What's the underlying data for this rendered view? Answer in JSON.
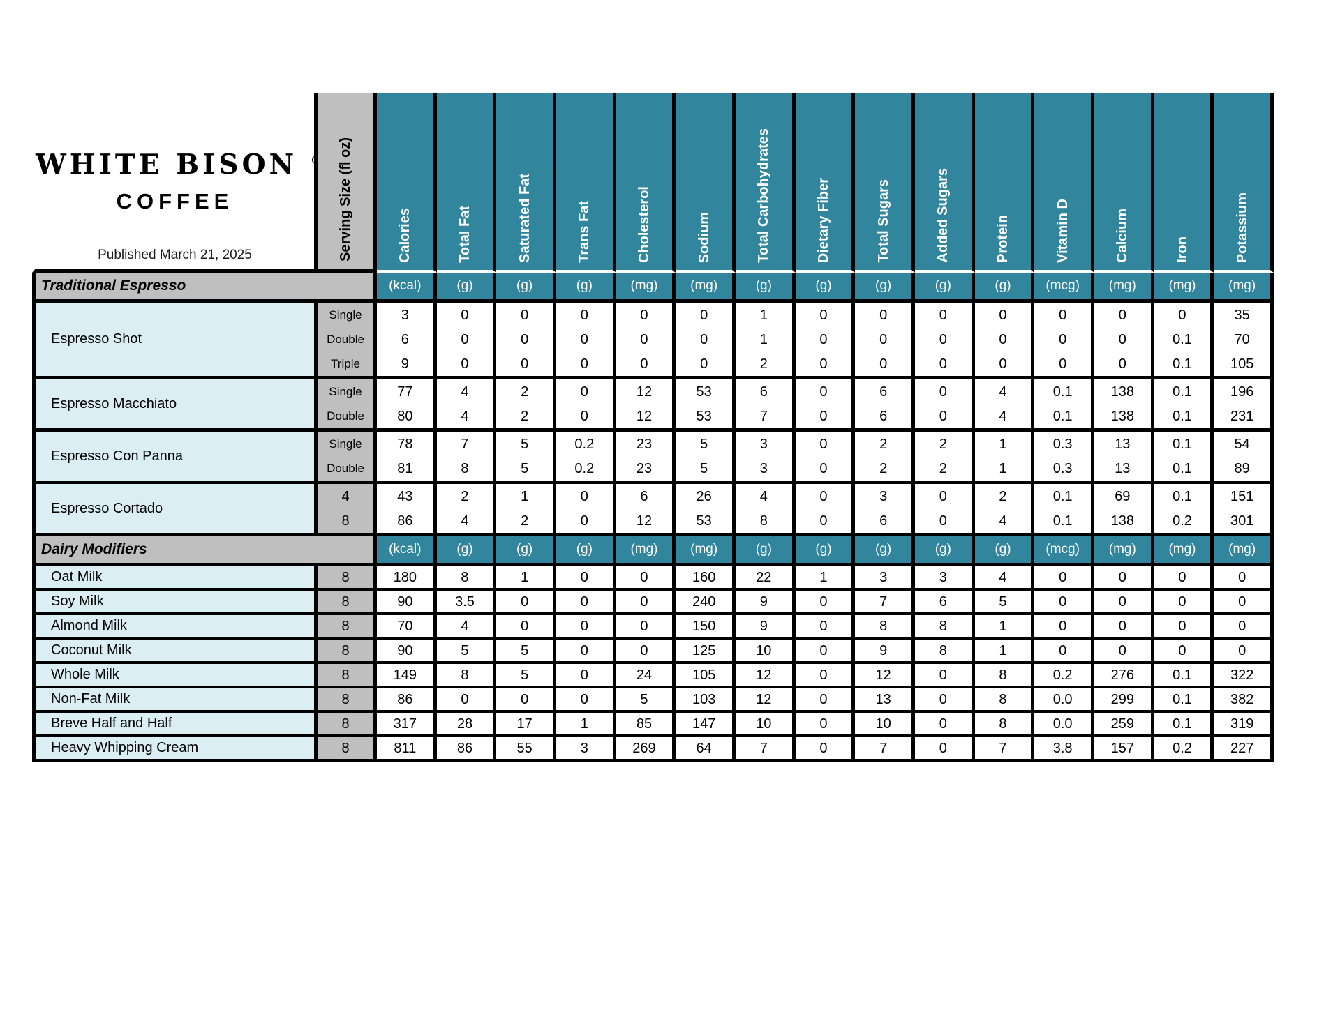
{
  "brand": {
    "name_line1": "WHITE BISON",
    "registered_mark": "®",
    "name_line2": "COFFEE",
    "published": "Published March 21, 2025"
  },
  "colors": {
    "teal": "#31859C",
    "header_gray": "#BFBFBF",
    "item_blue": "#DAEEF3",
    "border": "#000000"
  },
  "table": {
    "serving_size_header": "Serving Size (fl oz)",
    "nutrient_columns": [
      "Calories",
      "Total Fat",
      "Saturated Fat",
      "Trans Fat",
      "Cholesterol",
      "Sodium",
      "Total Carbohydrates",
      "Dietary Fiber",
      "Total Sugars",
      "Added Sugars",
      "Protein",
      "Vitamin D",
      "Calcium",
      "Iron",
      "Potassium"
    ],
    "unit_row": [
      "(kcal)",
      "(g)",
      "(g)",
      "(g)",
      "(mg)",
      "(mg)",
      "(g)",
      "(g)",
      "(g)",
      "(g)",
      "(g)",
      "(mcg)",
      "(mg)",
      "(mg)",
      "(mg)"
    ],
    "sections": [
      {
        "label": "Traditional Espresso",
        "groups": [
          {
            "name": "Espresso Shot",
            "servings": [
              "Single",
              "Double",
              "Triple"
            ],
            "rows": [
              [
                "3",
                "0",
                "0",
                "0",
                "0",
                "0",
                "1",
                "0",
                "0",
                "0",
                "0",
                "0",
                "0",
                "0",
                "35"
              ],
              [
                "6",
                "0",
                "0",
                "0",
                "0",
                "0",
                "1",
                "0",
                "0",
                "0",
                "0",
                "0",
                "0",
                "0.1",
                "70"
              ],
              [
                "9",
                "0",
                "0",
                "0",
                "0",
                "0",
                "2",
                "0",
                "0",
                "0",
                "0",
                "0",
                "0",
                "0.1",
                "105"
              ]
            ]
          },
          {
            "name": "Espresso Macchiato",
            "servings": [
              "Single",
              "Double"
            ],
            "rows": [
              [
                "77",
                "4",
                "2",
                "0",
                "12",
                "53",
                "6",
                "0",
                "6",
                "0",
                "4",
                "0.1",
                "138",
                "0.1",
                "196"
              ],
              [
                "80",
                "4",
                "2",
                "0",
                "12",
                "53",
                "7",
                "0",
                "6",
                "0",
                "4",
                "0.1",
                "138",
                "0.1",
                "231"
              ]
            ]
          },
          {
            "name": "Espresso Con Panna",
            "servings": [
              "Single",
              "Double"
            ],
            "rows": [
              [
                "78",
                "7",
                "5",
                "0.2",
                "23",
                "5",
                "3",
                "0",
                "2",
                "2",
                "1",
                "0.3",
                "13",
                "0.1",
                "54"
              ],
              [
                "81",
                "8",
                "5",
                "0.2",
                "23",
                "5",
                "3",
                "0",
                "2",
                "2",
                "1",
                "0.3",
                "13",
                "0.1",
                "89"
              ]
            ]
          },
          {
            "name": "Espresso Cortado",
            "servings": [
              "4",
              "8"
            ],
            "rows": [
              [
                "43",
                "2",
                "1",
                "0",
                "6",
                "26",
                "4",
                "0",
                "3",
                "0",
                "2",
                "0.1",
                "69",
                "0.1",
                "151"
              ],
              [
                "86",
                "4",
                "2",
                "0",
                "12",
                "53",
                "8",
                "0",
                "6",
                "0",
                "4",
                "0.1",
                "138",
                "0.2",
                "301"
              ]
            ]
          }
        ]
      },
      {
        "label": "Dairy Modifiers",
        "groups": [
          {
            "name": "Oat Milk",
            "servings": [
              "8"
            ],
            "rows": [
              [
                "180",
                "8",
                "1",
                "0",
                "0",
                "160",
                "22",
                "1",
                "3",
                "3",
                "4",
                "0",
                "0",
                "0",
                "0"
              ]
            ]
          },
          {
            "name": "Soy Milk",
            "servings": [
              "8"
            ],
            "rows": [
              [
                "90",
                "3.5",
                "0",
                "0",
                "0",
                "240",
                "9",
                "0",
                "7",
                "6",
                "5",
                "0",
                "0",
                "0",
                "0"
              ]
            ]
          },
          {
            "name": "Almond Milk",
            "servings": [
              "8"
            ],
            "rows": [
              [
                "70",
                "4",
                "0",
                "0",
                "0",
                "150",
                "9",
                "0",
                "8",
                "8",
                "1",
                "0",
                "0",
                "0",
                "0"
              ]
            ]
          },
          {
            "name": "Coconut Milk",
            "servings": [
              "8"
            ],
            "rows": [
              [
                "90",
                "5",
                "5",
                "0",
                "0",
                "125",
                "10",
                "0",
                "9",
                "8",
                "1",
                "0",
                "0",
                "0",
                "0"
              ]
            ]
          },
          {
            "name": "Whole Milk",
            "servings": [
              "8"
            ],
            "rows": [
              [
                "149",
                "8",
                "5",
                "0",
                "24",
                "105",
                "12",
                "0",
                "12",
                "0",
                "8",
                "0.2",
                "276",
                "0.1",
                "322"
              ]
            ]
          },
          {
            "name": "Non-Fat Milk",
            "servings": [
              "8"
            ],
            "rows": [
              [
                "86",
                "0",
                "0",
                "0",
                "5",
                "103",
                "12",
                "0",
                "13",
                "0",
                "8",
                "0.0",
                "299",
                "0.1",
                "382"
              ]
            ]
          },
          {
            "name": "Breve Half and Half",
            "servings": [
              "8"
            ],
            "rows": [
              [
                "317",
                "28",
                "17",
                "1",
                "85",
                "147",
                "10",
                "0",
                "10",
                "0",
                "8",
                "0.0",
                "259",
                "0.1",
                "319"
              ]
            ]
          },
          {
            "name": "Heavy Whipping Cream",
            "servings": [
              "8"
            ],
            "rows": [
              [
                "811",
                "86",
                "55",
                "3",
                "269",
                "64",
                "7",
                "0",
                "7",
                "0",
                "7",
                "3.8",
                "157",
                "0.2",
                "227"
              ]
            ]
          }
        ]
      }
    ]
  }
}
